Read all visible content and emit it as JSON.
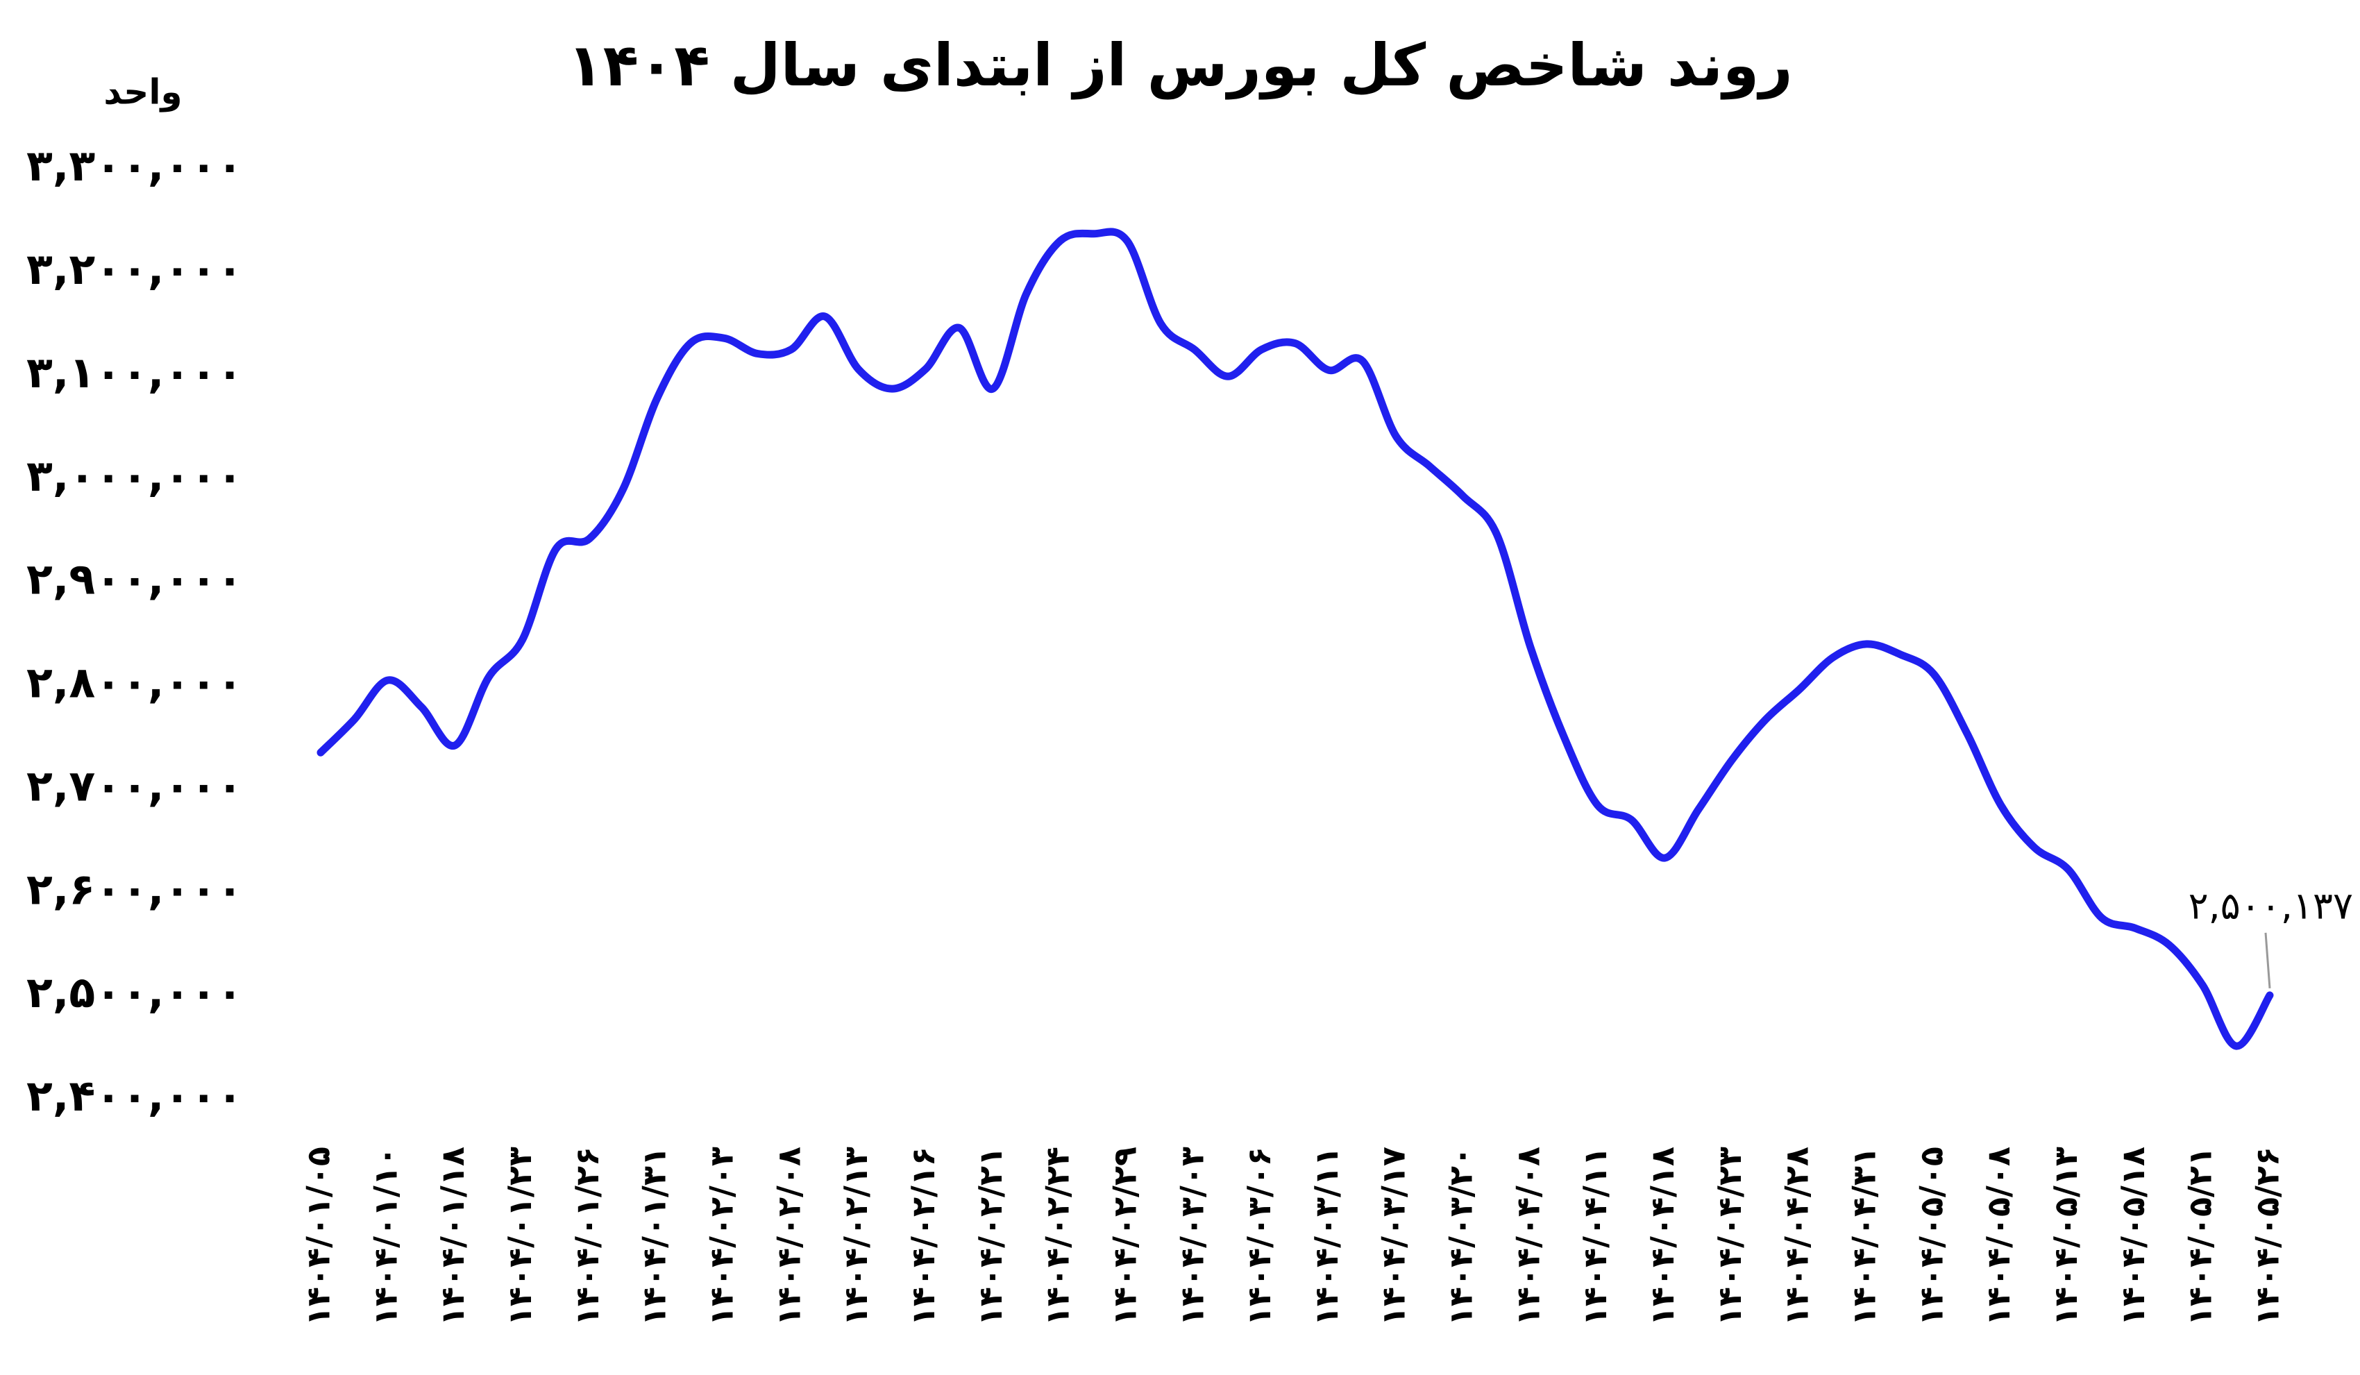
{
  "chart_data": {
    "type": "line",
    "title": "روند شاخص کل بورس از ابتدای سال ۱۴۰۴",
    "y_label": "واحد",
    "categories": [
      "۱۴۰۴/۰۱/۰۵",
      null,
      "۱۴۰۴/۰۱/۱۰",
      null,
      "۱۴۰۴/۰۱/۱۸",
      null,
      "۱۴۰۴/۰۱/۲۳",
      null,
      "۱۴۰۴/۰۱/۲۶",
      null,
      "۱۴۰۴/۰۱/۳۱",
      null,
      "۱۴۰۴/۰۲/۰۳",
      null,
      "۱۴۰۴/۰۲/۰۸",
      null,
      "۱۴۰۴/۰۲/۱۳",
      null,
      "۱۴۰۴/۰۲/۱۶",
      null,
      "۱۴۰۴/۰۲/۲۱",
      null,
      "۱۴۰۴/۰۲/۲۴",
      null,
      "۱۴۰۴/۰۲/۲۹",
      null,
      "۱۴۰۴/۰۳/۰۳",
      null,
      "۱۴۰۴/۰۳/۰۶",
      null,
      "۱۴۰۴/۰۳/۱۱",
      null,
      "۱۴۰۴/۰۳/۱۷",
      null,
      "۱۴۰۴/۰۳/۲۰",
      null,
      "۱۴۰۴/۰۴/۰۸",
      null,
      "۱۴۰۴/۰۴/۱۱",
      null,
      "۱۴۰۴/۰۴/۱۸",
      null,
      "۱۴۰۴/۰۴/۲۳",
      null,
      "۱۴۰۴/۰۴/۲۸",
      null,
      "۱۴۰۴/۰۴/۳۱",
      null,
      "۱۴۰۴/۰۵/۰۵",
      null,
      "۱۴۰۴/۰۵/۰۸",
      null,
      "۱۴۰۴/۰۵/۱۳",
      null,
      "۱۴۰۴/۰۵/۱۸",
      null,
      "۱۴۰۴/۰۵/۲۱",
      null,
      "۱۴۰۴/۰۵/۲۶"
    ],
    "values": [
      2735000,
      2767000,
      2805000,
      2779000,
      2742000,
      2808000,
      2844000,
      2932000,
      2942000,
      2990000,
      3077000,
      3131000,
      3136000,
      3121000,
      3125000,
      3157000,
      3106000,
      3087000,
      3106000,
      3146000,
      3087000,
      3179000,
      3230000,
      3237000,
      3230000,
      3150000,
      3125000,
      3099000,
      3125000,
      3131000,
      3105000,
      3114000,
      3041000,
      3012000,
      2983000,
      2946000,
      2837000,
      2750000,
      2684000,
      2670000,
      2633000,
      2680000,
      2728000,
      2767000,
      2796000,
      2827000,
      2840000,
      2830000,
      2811000,
      2753000,
      2684000,
      2643000,
      2622000,
      2575000,
      2565000,
      2549000,
      2510000,
      2451000,
      2500137
    ],
    "value_labels": [
      null,
      null,
      null,
      null,
      null,
      null,
      null,
      null,
      null,
      null,
      null,
      null,
      null,
      null,
      null,
      null,
      null,
      null,
      null,
      null,
      null,
      null,
      null,
      null,
      null,
      null,
      null,
      null,
      null,
      null,
      null,
      null,
      null,
      null,
      null,
      null,
      null,
      null,
      null,
      null,
      null,
      null,
      null,
      null,
      null,
      null,
      null,
      null,
      null,
      null,
      null,
      null,
      null,
      null,
      null,
      null,
      null,
      null,
      "۲,۵۰۰,۱۳۷"
    ],
    "color": "#2020ee",
    "ylim": [
      2400000,
      3300000
    ],
    "yticks": [
      {
        "value": 2400000,
        "label": "۲,۴۰۰,۰۰۰"
      },
      {
        "value": 2500000,
        "label": "۲,۵۰۰,۰۰۰"
      },
      {
        "value": 2600000,
        "label": "۲,۶۰۰,۰۰۰"
      },
      {
        "value": 2700000,
        "label": "۲,۷۰۰,۰۰۰"
      },
      {
        "value": 2800000,
        "label": "۲,۸۰۰,۰۰۰"
      },
      {
        "value": 2900000,
        "label": "۲,۹۰۰,۰۰۰"
      },
      {
        "value": 3000000,
        "label": "۳,۰۰۰,۰۰۰"
      },
      {
        "value": 3100000,
        "label": "۳,۱۰۰,۰۰۰"
      },
      {
        "value": 3200000,
        "label": "۳,۲۰۰,۰۰۰"
      },
      {
        "value": 3300000,
        "label": "۳,۳۰۰,۰۰۰"
      }
    ],
    "grid": false
  }
}
